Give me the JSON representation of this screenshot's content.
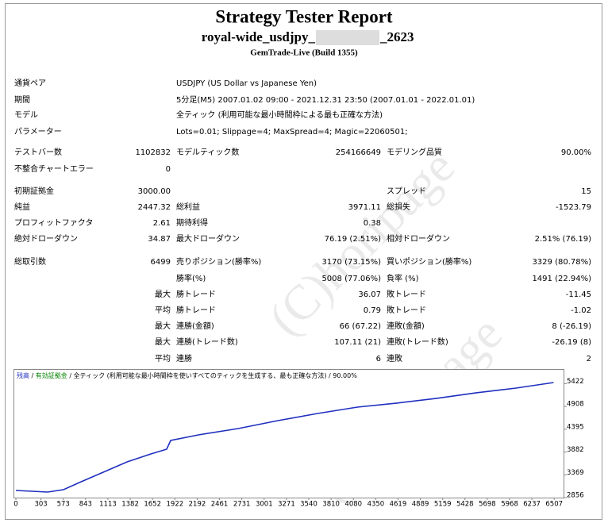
{
  "header": {
    "title": "Strategy Tester Report",
    "subtitle_start": "royal-wide_usdjpy_",
    "subtitle_end": "_2623",
    "server": "GemTrade-Live (Build 1355)"
  },
  "watermark": "(C)horipage",
  "info": [
    {
      "label": "通貨ペア",
      "value": "USDJPY (US Dollar vs Japanese Yen)"
    },
    {
      "label": "期間",
      "value": "5分足(M5) 2007.01.02 09:00 - 2021.12.31 23:50 (2007.01.01 - 2022.01.01)"
    },
    {
      "label": "モデル",
      "value": "全ティック (利用可能な最小時間枠による最も正確な方法)"
    },
    {
      "label": "パラメーター",
      "value": "Lots=0.01; Slippage=4; MaxSpread=4; Magic=22060501;"
    }
  ],
  "stats": [
    [
      "テストバー数",
      "1102832",
      "モデルティック数",
      "254166649",
      "モデリング品質",
      "90.00%"
    ],
    [
      "不整合チャートエラー",
      "0",
      null,
      null,
      null,
      null
    ],
    [
      "初期証拠金",
      "3000.00",
      null,
      null,
      "スプレッド",
      "15"
    ],
    [
      "純益",
      "2447.32",
      "総利益",
      "3971.11",
      "総損失",
      "-1523.79"
    ],
    [
      "プロフィットファクタ",
      "2.61",
      "期待利得",
      "0.38",
      null,
      null
    ],
    [
      "絶対ドローダウン",
      "34.87",
      "最大ドローダウン",
      "76.19 (2.51%)",
      "相対ドローダウン",
      "2.51% (76.19)"
    ],
    [
      "総取引数",
      "6499",
      "売りポジション(勝率%)",
      "3170 (73.15%)",
      "買いポジション(勝率%)",
      "3329 (80.78%)"
    ],
    [
      null,
      null,
      "勝率(%)",
      "5008 (77.06%)",
      "負率 (%)",
      "1491 (22.94%)"
    ],
    [
      null,
      "最大",
      "勝トレード",
      "36.07",
      "敗トレード",
      "-11.45"
    ],
    [
      null,
      "平均",
      "勝トレード",
      "0.79",
      "敗トレード",
      "-1.02"
    ],
    [
      null,
      "最大",
      "連勝(金額)",
      "66 (67.22)",
      "連敗(金額)",
      "8 (-26.19)"
    ],
    [
      null,
      "最大",
      "連勝(トレード数)",
      "107.11 (21)",
      "連敗(トレード数)",
      "-26.19 (8)"
    ],
    [
      null,
      "平均",
      "連勝",
      "6",
      "連敗",
      "2"
    ]
  ],
  "chart_data": {
    "type": "line",
    "series": [
      {
        "name": "残高",
        "color": "#1f2fbf",
        "x": [
          0,
          384,
          576,
          768,
          1056,
          1344,
          1632,
          1823,
          1871,
          2207,
          2687,
          3167,
          3647,
          4127,
          4607,
          5087,
          5566,
          6046,
          6499
        ],
        "values": [
          3017,
          2981,
          3035,
          3196,
          3428,
          3660,
          3839,
          3946,
          4143,
          4268,
          4411,
          4589,
          4750,
          4893,
          4983,
          5090,
          5215,
          5322,
          5447
        ]
      },
      {
        "name": "有効証拠金",
        "color": "#008000"
      }
    ],
    "legend_extra": [
      "全ティック (利用可能な最小時間枠を使いすべてのティックを生成する、最も正確な方法)",
      "90.00%"
    ],
    "xlim": [
      0,
      6620
    ],
    "ylim": [
      2856,
      5750
    ],
    "xticks": [
      0,
      303,
      573,
      843,
      1113,
      1382,
      1652,
      1922,
      2192,
      2461,
      2731,
      3001,
      3271,
      3540,
      3810,
      4080,
      4350,
      4619,
      4889,
      5159,
      5428,
      5698,
      5968,
      6237,
      6507
    ],
    "yticks": [
      2856,
      3369,
      3882,
      4395,
      4908,
      5422
    ]
  }
}
